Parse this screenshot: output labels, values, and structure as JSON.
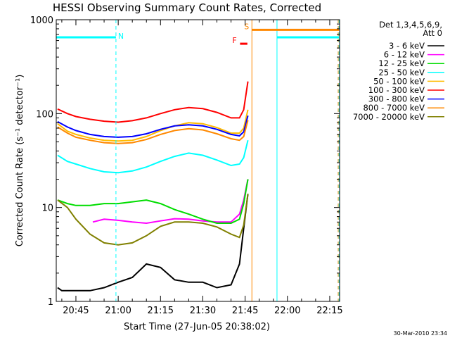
{
  "chart_data": {
    "type": "line",
    "title": "HESSI Observing Summary Count Rates, Corrected",
    "xlabel": "Start Time (27-Jun-05 20:38:02)",
    "ylabel": "Corrected Count Rate (s⁻¹ detector⁻¹)",
    "y_scale": "log",
    "ylim": [
      1,
      1000
    ],
    "y_ticks": [
      1,
      10,
      100,
      1000
    ],
    "y_tick_labels": [
      "1",
      "10",
      "100",
      "1000"
    ],
    "x_ticks": [
      "20:45",
      "21:00",
      "21:15",
      "21:30",
      "21:45",
      "22:00",
      "22:15"
    ],
    "x_range_minutes": [
      38.03,
      138.5
    ],
    "x_tick_minutes": [
      45,
      60,
      75,
      90,
      105,
      120,
      135
    ],
    "legend_header": [
      "Det 1,3,4,5,6,9,",
      "Att 0"
    ],
    "legend_placement": "right",
    "series": [
      {
        "name": "3 - 6 keV",
        "color": "#000000",
        "x": [
          38.5,
          40,
          45,
          50,
          55,
          60,
          65,
          70,
          75,
          80,
          85,
          90,
          95,
          100,
          103,
          104.5,
          106
        ],
        "y": [
          1.4,
          1.3,
          1.3,
          1.3,
          1.4,
          1.6,
          1.8,
          2.5,
          2.3,
          1.7,
          1.6,
          1.6,
          1.4,
          1.5,
          2.5,
          6,
          14
        ]
      },
      {
        "name": "6 - 12 keV",
        "color": "#ff00ff",
        "x": [
          51,
          55,
          60,
          65,
          70,
          75,
          80,
          85,
          90,
          95,
          100,
          103,
          104.5,
          106
        ],
        "y": [
          7.0,
          7.5,
          7.3,
          7.0,
          6.8,
          7.2,
          7.6,
          7.5,
          7.2,
          7.0,
          7.0,
          8.5,
          12,
          20
        ]
      },
      {
        "name": "12 - 25 keV",
        "color": "#00dd00",
        "x": [
          38.5,
          42,
          45,
          50,
          55,
          60,
          65,
          70,
          75,
          80,
          85,
          90,
          95,
          100,
          103,
          104.5,
          106
        ],
        "y": [
          12,
          11,
          10.5,
          10.5,
          11,
          11,
          11.5,
          12,
          11,
          9.5,
          8.5,
          7.5,
          6.8,
          6.8,
          7.5,
          11,
          20
        ]
      },
      {
        "name": "25 - 50 keV",
        "color": "#00ffff",
        "x": [
          38.5,
          42,
          45,
          50,
          55,
          60,
          65,
          70,
          75,
          80,
          85,
          90,
          95,
          100,
          103,
          104.5,
          106
        ],
        "y": [
          36,
          31,
          29,
          26,
          24,
          23.5,
          24.5,
          27,
          31,
          35,
          38,
          36,
          32,
          28,
          29,
          34,
          52
        ]
      },
      {
        "name": "50 - 100 keV",
        "color": "#ffbb00",
        "x": [
          38.5,
          42,
          45,
          50,
          55,
          60,
          65,
          70,
          75,
          80,
          85,
          90,
          95,
          100,
          103,
          104.5,
          106
        ],
        "y": [
          78,
          65,
          60,
          55,
          52,
          51,
          52,
          57,
          66,
          74,
          80,
          78,
          71,
          62,
          62,
          70,
          110
        ]
      },
      {
        "name": "100 - 300 keV",
        "color": "#ff0000",
        "x": [
          38.5,
          42,
          45,
          50,
          55,
          60,
          65,
          70,
          75,
          80,
          85,
          90,
          95,
          100,
          103,
          104.5,
          106
        ],
        "y": [
          112,
          100,
          93,
          87,
          83,
          81,
          84,
          90,
          100,
          110,
          116,
          113,
          103,
          90,
          90,
          110,
          220
        ]
      },
      {
        "name": "300 - 800 keV",
        "color": "#0000ff",
        "x": [
          38.5,
          42,
          45,
          50,
          55,
          60,
          65,
          70,
          75,
          80,
          85,
          90,
          95,
          100,
          103,
          104.5,
          106
        ],
        "y": [
          82,
          72,
          66,
          60,
          57,
          56,
          57,
          61,
          68,
          74,
          76,
          74,
          68,
          60,
          58,
          64,
          95
        ]
      },
      {
        "name": "800 - 7000 keV",
        "color": "#ff8800",
        "x": [
          38.5,
          42,
          45,
          50,
          55,
          60,
          65,
          70,
          75,
          80,
          85,
          90,
          95,
          100,
          103,
          104.5,
          106
        ],
        "y": [
          72,
          62,
          56,
          52,
          49,
          48,
          49,
          53,
          60,
          66,
          69,
          67,
          61,
          54,
          52,
          57,
          85
        ]
      },
      {
        "name": "7000 - 20000 keV",
        "color": "#808000",
        "x": [
          38.5,
          42,
          45,
          50,
          55,
          60,
          65,
          70,
          75,
          80,
          85,
          90,
          95,
          100,
          103,
          104.5,
          106
        ],
        "y": [
          12,
          10,
          7.5,
          5.2,
          4.2,
          4.0,
          4.2,
          5.0,
          6.3,
          7.0,
          7.0,
          6.8,
          6.2,
          5.2,
          4.8,
          6.5,
          14
        ]
      }
    ],
    "flag_bars": [
      {
        "label": "N",
        "color": "#00ffff",
        "level": 650,
        "start": 38.03,
        "end": 59.2
      },
      {
        "label": "N",
        "color": "#00ffff",
        "level": 650,
        "start": 116.3,
        "end": 138.3
      },
      {
        "label": "S",
        "color": "#ff8800",
        "level": 780,
        "start": 107.4,
        "end": 138.3
      },
      {
        "label": "F",
        "color": "#ff0000",
        "level": 555,
        "start": 103.2,
        "end": 105.8
      }
    ],
    "vertical_markers": [
      {
        "x": 38.03,
        "color": "#00ffff",
        "style": "solid"
      },
      {
        "x": 59.2,
        "color": "#00ffff",
        "style": "dashed"
      },
      {
        "x": 116.3,
        "color": "#00ffff",
        "style": "solid"
      },
      {
        "x": 138.3,
        "color": "#00ffff",
        "style": "dashed"
      },
      {
        "x": 107.4,
        "color": "#ff8800",
        "style": "solid"
      },
      {
        "x": 138.0,
        "color": "#ff8800",
        "style": "dashed"
      }
    ]
  },
  "footer": {
    "timestamp": "30-Mar-2010 23:34"
  }
}
